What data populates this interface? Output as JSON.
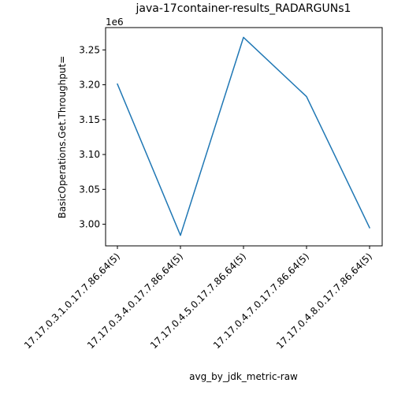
{
  "chart_data": {
    "type": "line",
    "title": "java-17container-results_RADARGUNs1",
    "xlabel": "avg_by_jdk_metric-raw",
    "ylabel": "BasicOperations.Get.Throughput=",
    "y_offset_label": "1e6",
    "y_scale": 1000000,
    "categories": [
      "17.17.0.3.1.0.17.7.86.64(5)",
      "17.17.0.3.4.0.17.7.86.64(5)",
      "17.17.0.4.5.0.17.7.86.64(5)",
      "17.17.0.4.7.0.17.7.86.64(5)",
      "17.17.0.4.8.0.17.7.86.64(5)"
    ],
    "series": [
      {
        "name": "BasicOperations.Get.Throughput=",
        "color": "#1f77b4",
        "values": [
          3201000,
          2984000,
          3268000,
          3183000,
          2995000
        ]
      }
    ],
    "yticks": [
      3000000,
      3050000,
      3100000,
      3150000,
      3200000,
      3250000
    ],
    "ytick_labels": [
      "3.00",
      "3.05",
      "3.10",
      "3.15",
      "3.20",
      "3.25"
    ],
    "ylim": [
      2969000,
      3282000
    ],
    "grid": false
  }
}
